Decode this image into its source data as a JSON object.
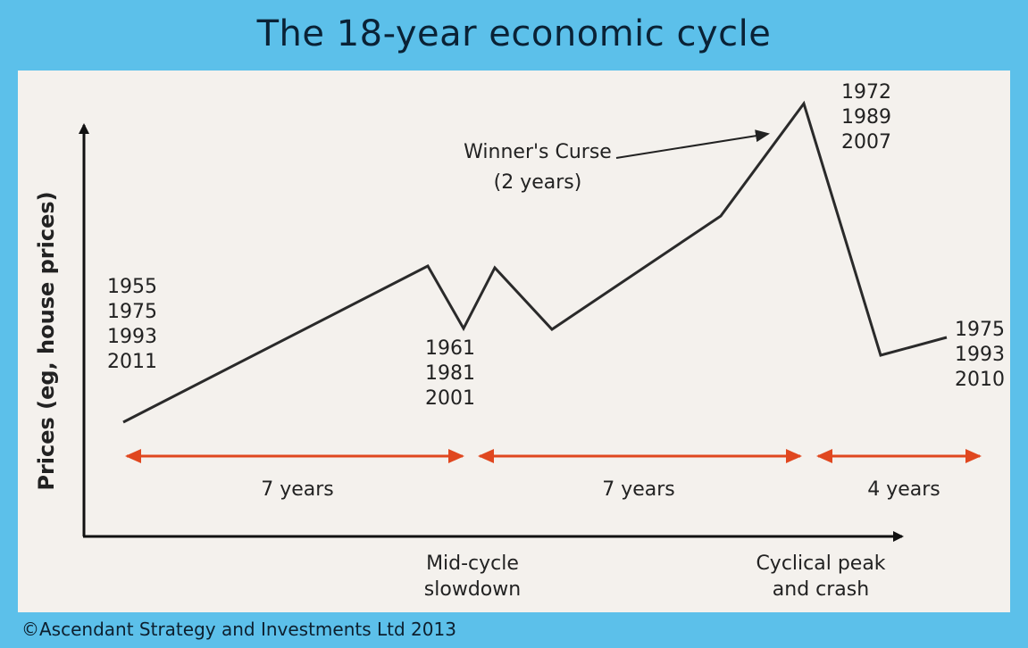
{
  "title": "The 18-year economic cycle",
  "y_axis_label": "Prices (eg, house prices)",
  "annotations": {
    "start_years": [
      "1955",
      "1975",
      "1993",
      "2011"
    ],
    "midcycle_years": [
      "1961",
      "1981",
      "2001"
    ],
    "peak_years": [
      "1972",
      "1989",
      "2007"
    ],
    "end_years": [
      "1975",
      "1993",
      "2010"
    ],
    "winners_curse": [
      "Winner's Curse",
      "(2 years)"
    ]
  },
  "phases": [
    {
      "label": "7 years"
    },
    {
      "label": "7 years"
    },
    {
      "label": "4 years"
    }
  ],
  "x_axis_labels": {
    "mid": [
      "Mid-cycle",
      "slowdown"
    ],
    "peak": [
      "Cyclical peak",
      "and crash"
    ]
  },
  "footer": "©Ascendant Strategy and Investments Ltd 2013",
  "colors": {
    "background": "#5cc0ea",
    "panel": "#f4f1ed",
    "phase_arrow": "#e0471f",
    "line": "#2a2a2a"
  }
}
